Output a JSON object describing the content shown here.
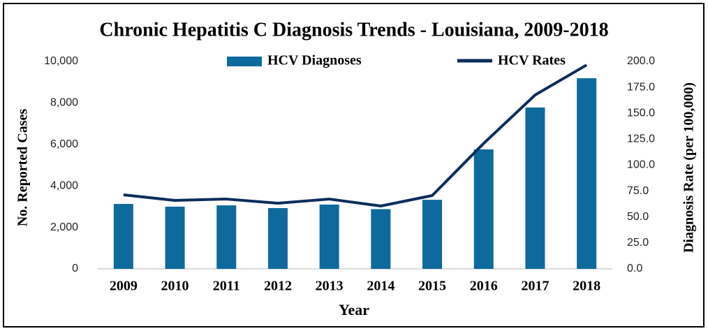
{
  "chart_data": {
    "type": "bar",
    "title": "Chronic Hepatitis C Diagnosis Trends - Louisiana, 2009-2018",
    "x_label": "Year",
    "y_label": "No. Reported Cases",
    "y2_label": "Diagnosis Rate (per 100,000)",
    "categories": [
      "2009",
      "2010",
      "2011",
      "2012",
      "2013",
      "2014",
      "2015",
      "2016",
      "2017",
      "2018"
    ],
    "series": [
      {
        "name": "HCV Diagnoses",
        "type": "bar",
        "color": "#0e6a9c",
        "values": [
          3130,
          3000,
          3060,
          2930,
          3100,
          2880,
          3330,
          5760,
          7780,
          9190
        ]
      },
      {
        "name": "HCV Rates",
        "type": "line",
        "axis": "y2",
        "color": "#0b2d5b",
        "values": [
          71.4,
          66.0,
          67.3,
          63.3,
          67.3,
          60.6,
          70.7,
          121.0,
          167.7,
          196.6
        ]
      }
    ],
    "ylim": [
      0,
      10000
    ],
    "yticks": [
      0,
      {
        "value": 2000,
        "label": "2,000"
      },
      {
        "value": 4000,
        "label": "4,000"
      },
      {
        "value": 6000,
        "label": "6,000"
      },
      {
        "value": 8000,
        "label": "8,000"
      },
      {
        "value": 10000,
        "label": "10,000"
      }
    ],
    "y2lim": [
      0,
      200
    ],
    "y2ticks": [
      {
        "value": 0,
        "label": "0.0"
      },
      {
        "value": 25,
        "label": "25.0"
      },
      {
        "value": 50,
        "label": "50.0"
      },
      {
        "value": 75,
        "label": "75.0"
      },
      {
        "value": 100,
        "label": "100.0"
      },
      {
        "value": 125,
        "label": "125.0"
      },
      {
        "value": 150,
        "label": "150.0"
      },
      {
        "value": 175,
        "label": "175.0"
      },
      {
        "value": 200,
        "label": "200.0"
      }
    ],
    "grid": false
  }
}
